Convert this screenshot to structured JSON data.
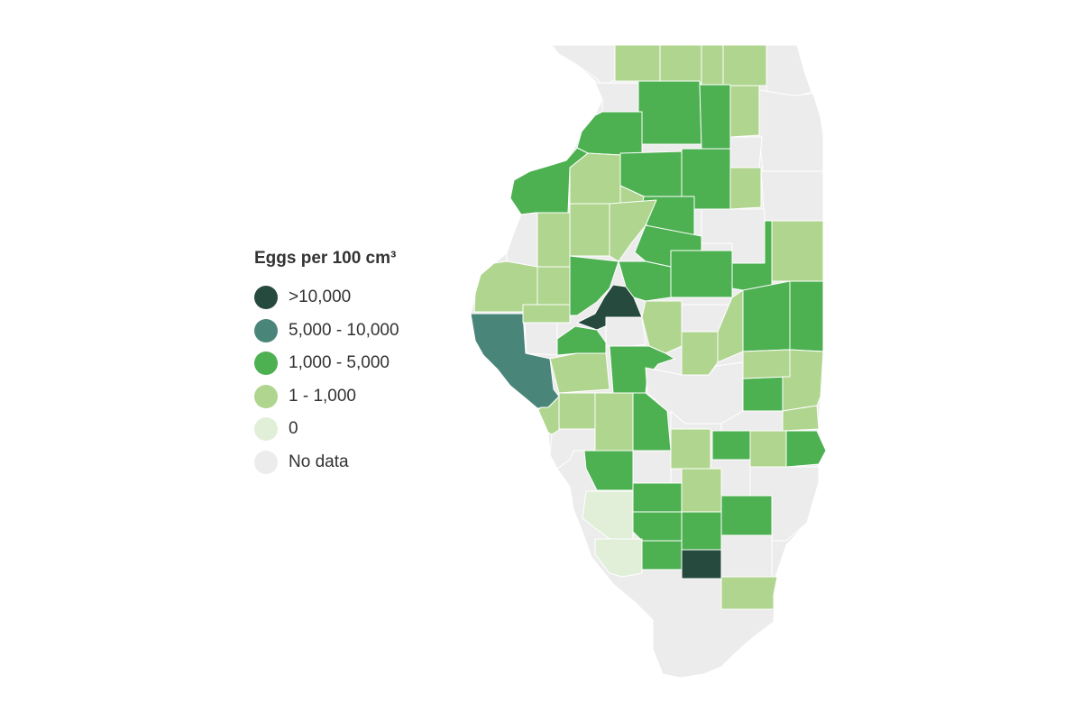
{
  "legend": {
    "title": "Eggs per 100 cm³",
    "items": [
      {
        "key": "c5",
        "label": ">10,000",
        "color": "#264a3d"
      },
      {
        "key": "c4",
        "label": "5,000 - 10,000",
        "color": "#4a857a"
      },
      {
        "key": "c3",
        "label": "1,000 - 5,000",
        "color": "#4db051"
      },
      {
        "key": "c2",
        "label": "1 - 1,000",
        "color": "#afd58e"
      },
      {
        "key": "c1",
        "label": "0",
        "color": "#e1efd8"
      },
      {
        "key": "c0",
        "label": "No data",
        "color": "#ececec"
      }
    ]
  },
  "map": {
    "region": "Illinois",
    "units": "counties"
  }
}
